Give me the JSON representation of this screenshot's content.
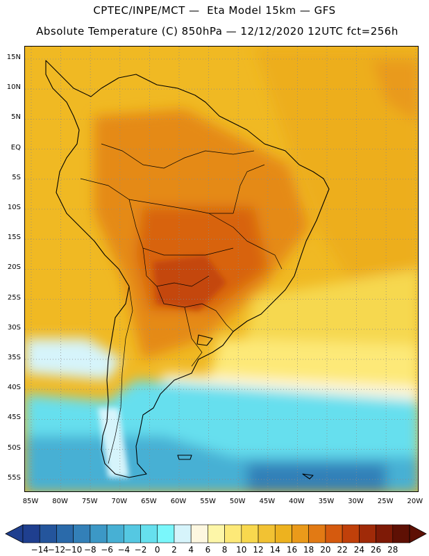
{
  "header": {
    "line1": "CPTEC/INPE/MCT —  Eta Model 15km — GFS",
    "line2": "Absolute Temperature (C) 850hPa — 12/12/2020 12UTC fct=256h"
  },
  "axes": {
    "lat_ticks": [
      "15N",
      "10N",
      "5N",
      "EQ",
      "5S",
      "10S",
      "15S",
      "20S",
      "25S",
      "30S",
      "35S",
      "40S",
      "45S",
      "50S",
      "55S"
    ],
    "lon_ticks": [
      "85W",
      "80W",
      "75W",
      "70W",
      "65W",
      "60W",
      "55W",
      "50W",
      "45W",
      "40W",
      "35W",
      "30W",
      "25W",
      "20W"
    ]
  },
  "colorbar": {
    "labels": [
      "-14",
      "-12",
      "-10",
      "-8",
      "-6",
      "-4",
      "-2",
      "0",
      "2",
      "4",
      "6",
      "8",
      "10",
      "12",
      "14",
      "16",
      "18",
      "20",
      "22",
      "24",
      "26",
      "28"
    ],
    "colors": [
      "#1f3f8f",
      "#24559c",
      "#2a6aaa",
      "#3380b8",
      "#3c98c6",
      "#47b0d4",
      "#55c8e2",
      "#66e0ee",
      "#7af7fb",
      "#d6f4fb",
      "#fdf7e0",
      "#fdf6a8",
      "#fde978",
      "#f8d84e",
      "#f2c233",
      "#edb21f",
      "#ea9a1a",
      "#e27a14",
      "#d55a0e",
      "#c0400a",
      "#a02a08",
      "#7e1a06",
      "#5e1004"
    ]
  }
}
